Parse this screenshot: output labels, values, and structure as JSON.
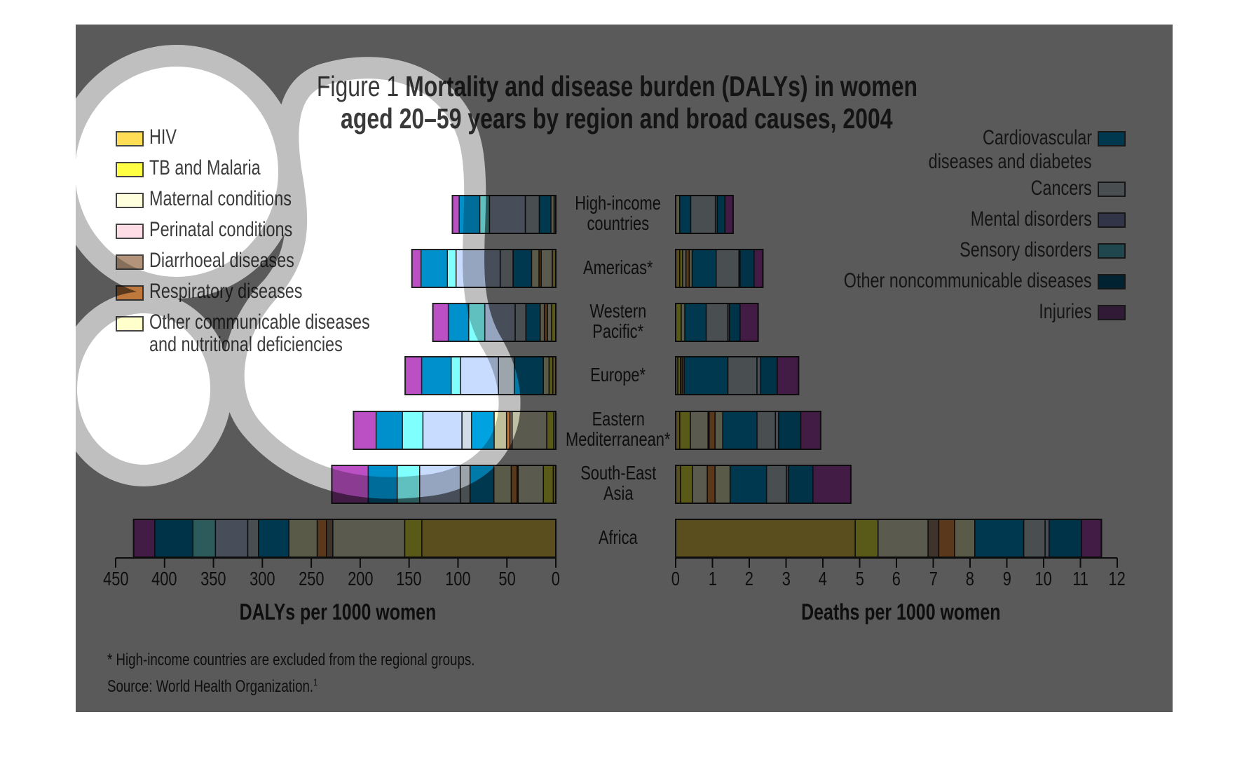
{
  "figure": {
    "label": "Figure 1",
    "title_line1": "Mortality and disease burden (DALYs) in women",
    "title_line2": "aged 20–59 years by region and broad causes, 2004"
  },
  "colors": {
    "overlay": "#5a5a5a",
    "ring": "#bfbfbf"
  },
  "chart_data": {
    "type": "bar",
    "orientation": "horizontal-stacked",
    "title": "Figure 1 Mortality and disease burden (DALYs) in women aged 20–59 years by region and broad causes, 2004",
    "categories": [
      "High-income countries",
      "Americas*",
      "Western Pacific*",
      "Europe*",
      "Eastern Mediterranean*",
      "South-East Asia",
      "Africa"
    ],
    "category_labels": [
      [
        "High-income",
        "countries"
      ],
      [
        "Americas*"
      ],
      [
        "Western",
        "Pacific*"
      ],
      [
        "Europe*"
      ],
      [
        "Eastern",
        "Mediterranean*"
      ],
      [
        "South-East",
        "Asia"
      ],
      [
        "Africa"
      ]
    ],
    "causes": [
      {
        "name": "HIV",
        "color": "#ffdd55"
      },
      {
        "name": "TB and Malaria",
        "color": "#ffff44"
      },
      {
        "name": "Maternal conditions",
        "color": "#ffffdd"
      },
      {
        "name": "Perinatal conditions",
        "color": "#ffdde6"
      },
      {
        "name": "Diarrhoeal diseases",
        "color": "#b3947a"
      },
      {
        "name": "Respiratory diseases",
        "color": "#ffa050"
      },
      {
        "name": "Other communicable diseases and nutritional deficiencies",
        "color": "#ffffcc"
      },
      {
        "name": "Cardiovascular diseases and diabetes",
        "color": "#00a3e0"
      },
      {
        "name": "Cancers",
        "color": "#d0dce6"
      },
      {
        "name": "Mental disorders",
        "color": "#c8dcff"
      },
      {
        "name": "Sensory disorders",
        "color": "#80ffff"
      },
      {
        "name": "Other noncommunicable diseases",
        "color": "#0090cc"
      },
      {
        "name": "Injuries",
        "color": "#bb4fc4"
      }
    ],
    "panels": [
      {
        "id": "dalys",
        "xlabel": "DALYs per 1000 women",
        "direction": "right-to-left",
        "xlim": [
          0,
          450
        ],
        "ticks": [
          0,
          50,
          100,
          150,
          200,
          250,
          300,
          350,
          400,
          450
        ],
        "series": [
          {
            "name": "HIV",
            "values": [
              0,
              3.6,
              0,
              3.1,
              2.1,
              2.6,
              137
            ]
          },
          {
            "name": "TB and Malaria",
            "values": [
              0,
              0,
              4.3,
              3.8,
              7.2,
              10.1,
              17.5
            ]
          },
          {
            "name": "Maternal conditions",
            "values": [
              0,
              11.4,
              4.3,
              0,
              35.4,
              25.8,
              73.5
            ]
          },
          {
            "name": "Perinatal conditions",
            "values": [
              0,
              0,
              0,
              0,
              0,
              0,
              0
            ]
          },
          {
            "name": "Diarrhoeal diseases",
            "values": [
              0,
              0,
              0,
              0,
              2.3,
              1.2,
              6.5
            ]
          },
          {
            "name": "Respiratory diseases",
            "values": [
              1.8,
              2.2,
              3.1,
              0,
              3.4,
              5.9,
              9.5
            ]
          },
          {
            "name": "Other communicable diseases and nutritional deficiencies",
            "values": [
              3.3,
              7.6,
              4.3,
              5.9,
              12.7,
              17.7,
              29
            ]
          },
          {
            "name": "Cardiovascular diseases and diabetes",
            "values": [
              11.8,
              18.9,
              14.6,
              29.7,
              23.1,
              24.4,
              31
            ]
          },
          {
            "name": "Cancers",
            "values": [
              14.3,
              13.2,
              11.0,
              16.1,
              9.8,
              10.0,
              11
            ]
          },
          {
            "name": "Mental disorders",
            "values": [
              36.6,
              45.1,
              31.0,
              38.9,
              39.9,
              41.5,
              33
            ]
          },
          {
            "name": "Sensory disorders",
            "values": [
              10.0,
              8.9,
              16.5,
              9.5,
              21.0,
              23.0,
              23
            ]
          },
          {
            "name": "Other noncommunicable diseases",
            "values": [
              21.0,
              26.9,
              20.8,
              30.2,
              26.8,
              29.6,
              39
            ]
          },
          {
            "name": "Injuries",
            "values": [
              6.9,
              9.3,
              15.8,
              16.8,
              23.1,
              37.2,
              21.6
            ]
          }
        ]
      },
      {
        "id": "deaths",
        "xlabel": "Deaths per 1000 women",
        "direction": "left-to-right",
        "xlim": [
          0,
          12
        ],
        "ticks": [
          0,
          1,
          2,
          3,
          4,
          5,
          6,
          7,
          8,
          9,
          10,
          11,
          12
        ],
        "series": [
          {
            "name": "HIV",
            "values": [
              0,
              0.11,
              0,
              0.06,
              0.11,
              0.13,
              4.88
            ]
          },
          {
            "name": "TB and Malaria",
            "values": [
              0,
              0.08,
              0.15,
              0.07,
              0.29,
              0.33,
              0.62
            ]
          },
          {
            "name": "Maternal conditions",
            "values": [
              0,
              0.09,
              0,
              0,
              0.48,
              0.4,
              1.36
            ]
          },
          {
            "name": "Perinatal conditions",
            "values": [
              0,
              0,
              0,
              0,
              0,
              0,
              0
            ]
          },
          {
            "name": "Diarrhoeal diseases",
            "values": [
              0,
              0,
              0,
              0,
              0.03,
              0,
              0.29
            ]
          },
          {
            "name": "Respiratory diseases",
            "values": [
              0,
              0.09,
              0,
              0.05,
              0.16,
              0.21,
              0.43
            ]
          },
          {
            "name": "Other communicable diseases and nutritional deficiencies",
            "values": [
              0.11,
              0.08,
              0.1,
              0.05,
              0.21,
              0.41,
              0.55
            ]
          },
          {
            "name": "Cardiovascular diseases and diabetes",
            "values": [
              0.3,
              0.65,
              0.58,
              1.19,
              0.93,
              0.99,
              1.33
            ]
          },
          {
            "name": "Cancers",
            "values": [
              0.67,
              0.62,
              0.59,
              0.79,
              0.5,
              0.54,
              0.58
            ]
          },
          {
            "name": "Mental disorders",
            "values": [
              0.05,
              0.03,
              0.04,
              0.1,
              0.09,
              0.05,
              0.11
            ]
          },
          {
            "name": "Sensory disorders",
            "values": [
              0,
              0,
              0,
              0,
              0,
              0,
              0
            ]
          },
          {
            "name": "Other noncommunicable diseases",
            "values": [
              0.21,
              0.38,
              0.29,
              0.45,
              0.6,
              0.67,
              0.88
            ]
          },
          {
            "name": "Injuries",
            "values": [
              0.22,
              0.24,
              0.49,
              0.58,
              0.54,
              1.03,
              0.54
            ]
          }
        ]
      }
    ],
    "legend_left": [
      "HIV",
      "TB and Malaria",
      "Maternal conditions",
      "Perinatal conditions",
      "Diarrhoeal diseases",
      "Respiratory diseases",
      "Other communicable diseases and nutritional deficiencies"
    ],
    "legend_right": [
      "Cardiovascular diseases and diabetes",
      "Cancers",
      "Mental disorders",
      "Sensory disorders",
      "Other noncommunicable diseases",
      "Injuries"
    ],
    "grid": false
  },
  "legend": {
    "left": [
      {
        "lines": [
          "HIV"
        ],
        "color": "#ffdd55"
      },
      {
        "lines": [
          "TB and Malaria"
        ],
        "color": "#ffff44"
      },
      {
        "lines": [
          "Maternal conditions"
        ],
        "color": "#ffffdd"
      },
      {
        "lines": [
          "Perinatal conditions"
        ],
        "color": "#ffdde6"
      },
      {
        "lines": [
          "Diarrhoeal diseases"
        ],
        "color": "#b3947a"
      },
      {
        "lines": [
          "Respiratory diseases"
        ],
        "color": "#ffa050"
      },
      {
        "lines": [
          "Other communicable diseases",
          "and nutritional deficiencies"
        ],
        "color": "#ffffcc"
      }
    ],
    "right": [
      {
        "lines": [
          "Cardiovascular",
          "diseases and diabetes"
        ],
        "color": "#00a3e0"
      },
      {
        "lines": [
          "Cancers"
        ],
        "color": "#d0dce6"
      },
      {
        "lines": [
          "Mental disorders"
        ],
        "color": "#8a97c8"
      },
      {
        "lines": [
          "Sensory disorders"
        ],
        "color": "#5fc8dc"
      },
      {
        "lines": [
          "Other noncommunicable diseases"
        ],
        "color": "#00628a"
      },
      {
        "lines": [
          "Injuries"
        ],
        "color": "#8a4a9a"
      }
    ]
  },
  "footnotes": {
    "note": "* High-income countries are excluded from the regional groups.",
    "source": "Source: World Health Organization.",
    "source_ref": "1"
  }
}
